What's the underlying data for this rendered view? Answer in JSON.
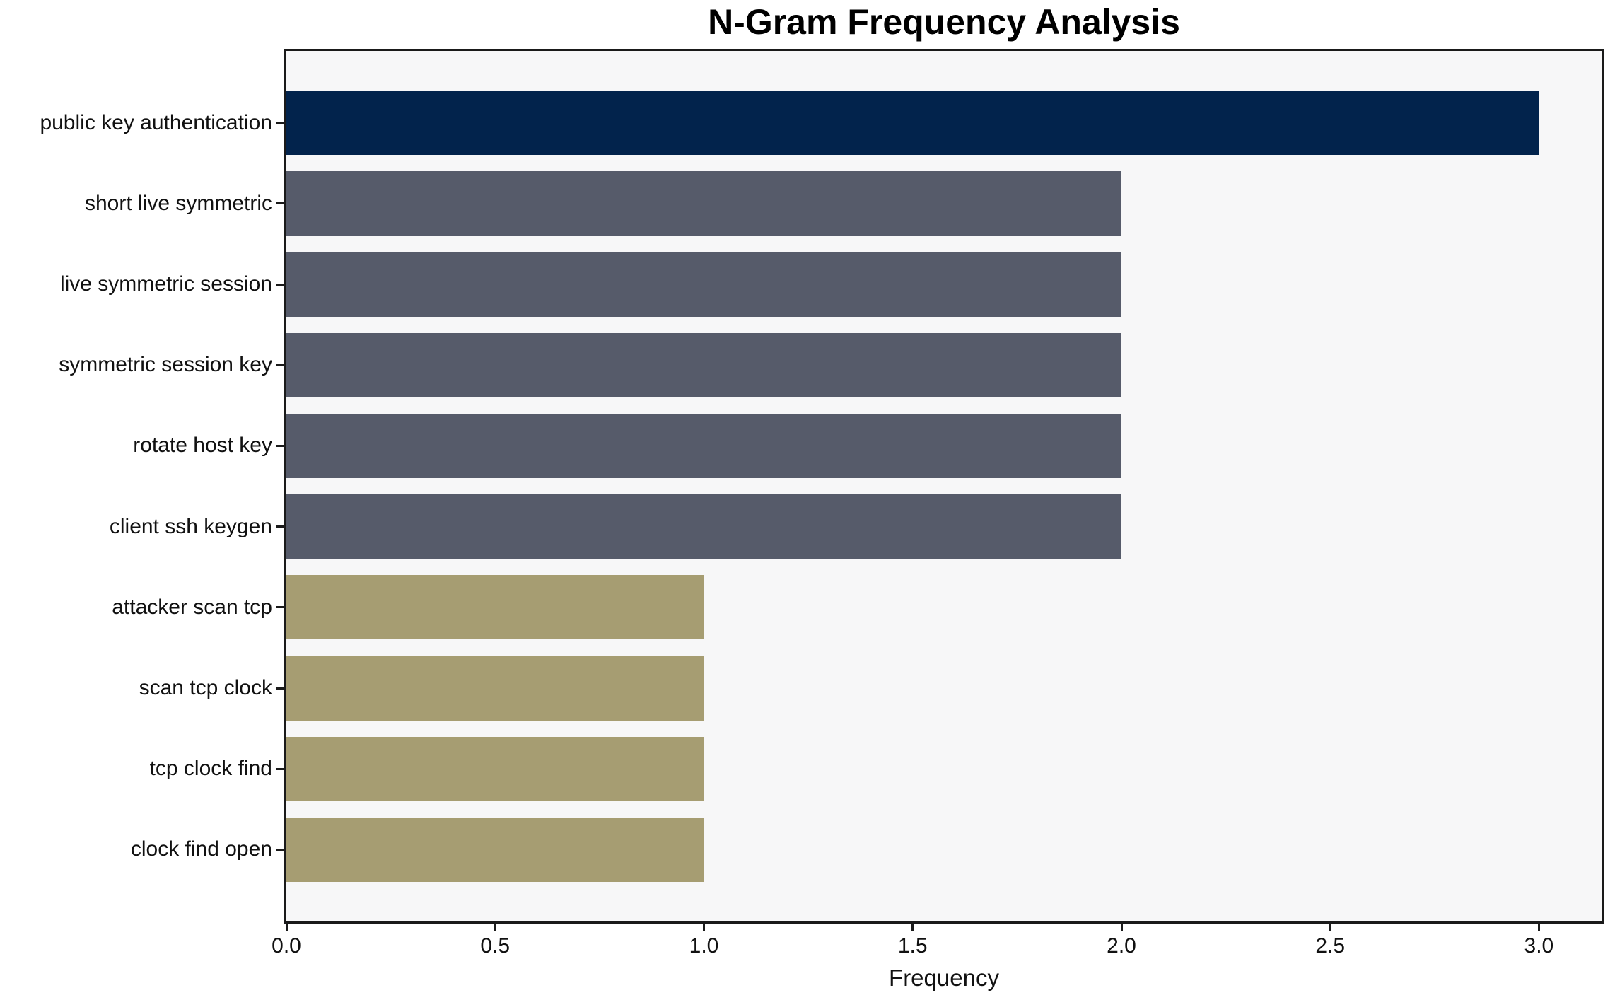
{
  "chart_data": {
    "type": "bar",
    "orientation": "horizontal",
    "title": "N-Gram Frequency Analysis",
    "xlabel": "Frequency",
    "ylabel": "",
    "categories": [
      "public key authentication",
      "short live symmetric",
      "live symmetric session",
      "symmetric session key",
      "rotate host key",
      "client ssh keygen",
      "attacker scan tcp",
      "scan tcp clock",
      "tcp clock find",
      "clock find open"
    ],
    "values": [
      3,
      2,
      2,
      2,
      2,
      2,
      1,
      1,
      1,
      1
    ],
    "bar_colors": [
      "#02234c",
      "#565b6a",
      "#565b6a",
      "#565b6a",
      "#565b6a",
      "#565b6a",
      "#a69d72",
      "#a69d72",
      "#a69d72",
      "#a69d72"
    ],
    "xlim": [
      0,
      3.15
    ],
    "xticks": [
      0.0,
      0.5,
      1.0,
      1.5,
      2.0,
      2.5,
      3.0
    ],
    "xtick_labels": [
      "0.0",
      "0.5",
      "1.0",
      "1.5",
      "2.0",
      "2.5",
      "3.0"
    ],
    "grid": false,
    "legend": null,
    "plot_bg": "#f7f7f8",
    "frame_color": "#1a1a1a",
    "text_color": "#111111"
  }
}
